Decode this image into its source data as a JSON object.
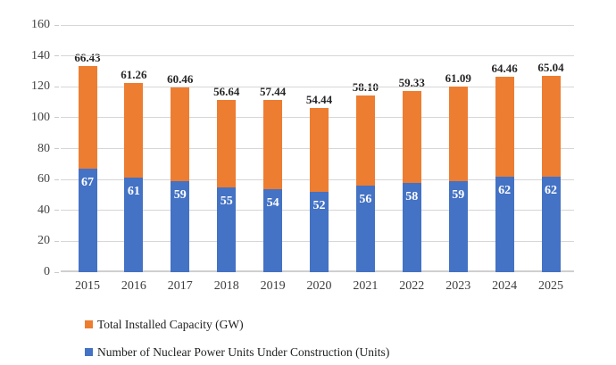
{
  "chart_data": {
    "type": "bar",
    "stacked": true,
    "title": "",
    "xlabel": "",
    "ylabel": "",
    "categories": [
      "2015",
      "2016",
      "2017",
      "2018",
      "2019",
      "2020",
      "2021",
      "2022",
      "2023",
      "2024",
      "2025"
    ],
    "series": [
      {
        "name": "Number of Nuclear Power Units Under Construction (Units)",
        "color": "#4472C4",
        "values": [
          67,
          61,
          59,
          55,
          54,
          52,
          56,
          58,
          59,
          62,
          62
        ],
        "labels": [
          "67",
          "61",
          "59",
          "55",
          "54",
          "52",
          "56",
          "58",
          "59",
          "62",
          "62"
        ],
        "label_position": "inside-top",
        "label_color": "#FFFFFF"
      },
      {
        "name": "Total Installed Capacity (GW)",
        "color": "#ED7D31",
        "values": [
          66.43,
          61.26,
          60.46,
          56.64,
          57.44,
          54.44,
          58.1,
          59.33,
          61.09,
          64.46,
          65.04
        ],
        "labels": [
          "66.43",
          "61.26",
          "60.46",
          "56.64",
          "57.44",
          "54.44",
          "58.10",
          "59.33",
          "61.09",
          "64.46",
          "65.04"
        ],
        "label_position": "above",
        "label_color": "#262626"
      }
    ],
    "ylim": [
      0,
      160
    ],
    "yticks": [
      0,
      20,
      40,
      60,
      80,
      100,
      120,
      140,
      160
    ],
    "grid": true,
    "legend_position": "bottom-left",
    "legend": [
      {
        "label": "Total Installed Capacity (GW)",
        "color": "#ED7D31"
      },
      {
        "label": "Number of Nuclear Power Units Under Construction (Units)",
        "color": "#4472C4"
      }
    ]
  },
  "colors": {
    "bar_orange": "#ED7D31",
    "bar_blue": "#4472C4",
    "gridline": "#D6D6D6",
    "axis_line": "#CFCFCF",
    "axis_text": "#404040",
    "data_label_text": "#262626",
    "inside_label_text": "#FFFFFF",
    "background": "#FFFFFF"
  }
}
